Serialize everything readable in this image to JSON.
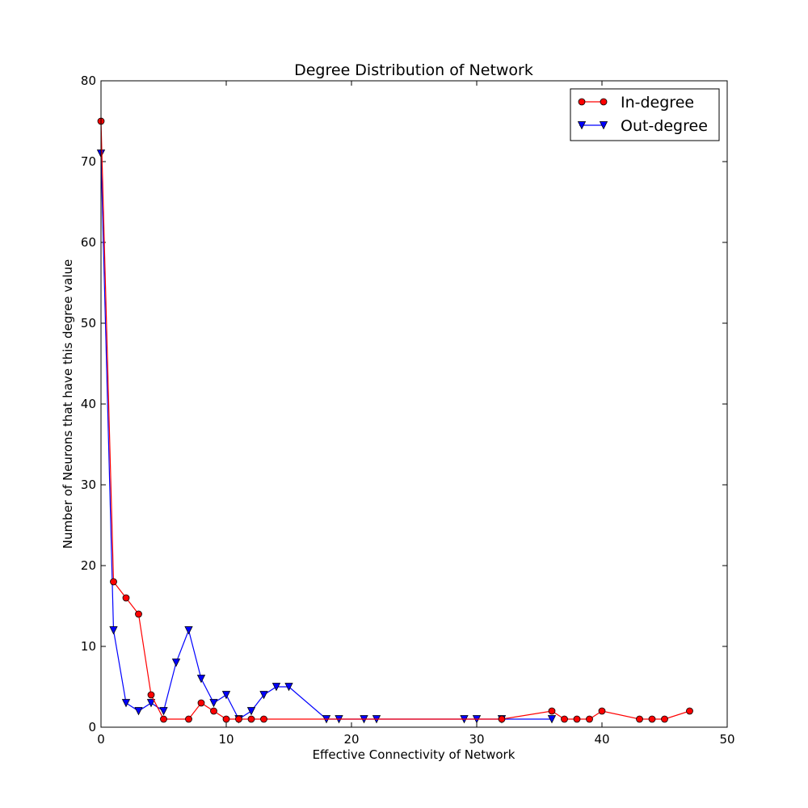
{
  "chart_data": {
    "type": "line",
    "title": "Degree Distribution of Network",
    "xlabel": "Effective Connectivity of Network",
    "ylabel": "Number of Neurons that have this degree value",
    "xlim": [
      0,
      50
    ],
    "ylim": [
      0,
      80
    ],
    "xticks": [
      0,
      10,
      20,
      30,
      40,
      50
    ],
    "yticks": [
      0,
      10,
      20,
      30,
      40,
      50,
      60,
      70,
      80
    ],
    "grid": false,
    "legend_position": "top-right",
    "series": [
      {
        "name": "In-degree",
        "color": "#ff0000",
        "marker": "circle",
        "x": [
          0,
          1,
          2,
          3,
          4,
          5,
          7,
          8,
          9,
          10,
          11,
          12,
          13,
          32,
          36,
          37,
          38,
          39,
          40,
          43,
          44,
          45,
          47
        ],
        "y": [
          75,
          18,
          16,
          14,
          4,
          1,
          1,
          3,
          2,
          1,
          1,
          1,
          1,
          1,
          2,
          1,
          1,
          1,
          2,
          1,
          1,
          1,
          2
        ]
      },
      {
        "name": "Out-degree",
        "color": "#0000ff",
        "marker": "triangle-down",
        "x": [
          0,
          1,
          2,
          3,
          4,
          5,
          6,
          7,
          8,
          9,
          10,
          11,
          12,
          13,
          14,
          15,
          18,
          19,
          21,
          22,
          29,
          30,
          32,
          36
        ],
        "y": [
          71,
          12,
          3,
          2,
          3,
          2,
          8,
          12,
          6,
          3,
          4,
          1,
          2,
          4,
          5,
          5,
          1,
          1,
          1,
          1,
          1,
          1,
          1,
          1
        ]
      }
    ]
  }
}
